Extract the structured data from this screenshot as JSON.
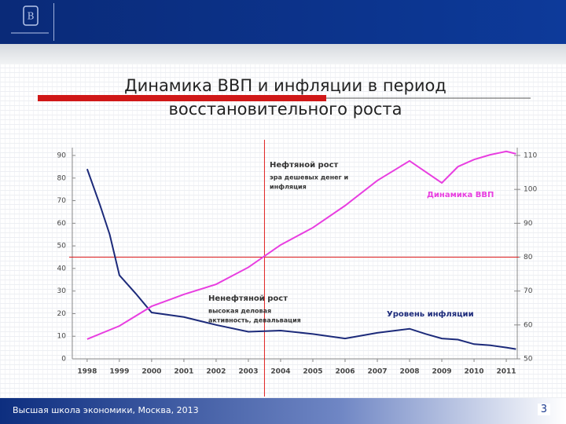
{
  "slide": {
    "title_lines": [
      "Динамика ВВП и инфляции в период",
      "восстановительного роста"
    ]
  },
  "footer": {
    "text": "Высшая школа экономики, Москва, 2013",
    "page": "3"
  },
  "chart_data": {
    "type": "line",
    "xlim": [
      1997.54,
      2011.34
    ],
    "xticks": [
      1998,
      1999,
      2000,
      2001,
      2002,
      2003,
      2004,
      2005,
      2006,
      2007,
      2008,
      2009,
      2010,
      2011
    ],
    "ylim": [
      0,
      90
    ],
    "yticks": [
      0,
      10,
      20,
      30,
      40,
      50,
      60,
      70,
      80,
      90
    ],
    "y2lim": [
      50,
      110
    ],
    "y2ticks": [
      50,
      60,
      70,
      80,
      90,
      100,
      110
    ],
    "series": [
      {
        "name": "Уровень инфляции",
        "color": "#1c2a7a",
        "x": [
          1998.0,
          1998.4,
          1998.7,
          1999.0,
          1999.5,
          2000.0,
          2001.0,
          2002.0,
          2003.0,
          2004.0,
          2005.0,
          2006.0,
          2007.0,
          2008.0,
          2008.5,
          2009.0,
          2009.5,
          2010.0,
          2010.5,
          2011.0,
          2011.3
        ],
        "values": [
          84,
          68,
          55,
          37,
          29,
          20.5,
          18.5,
          15,
          12,
          12.5,
          11,
          9,
          11.5,
          13.3,
          11,
          9,
          8.5,
          6.5,
          6,
          5,
          4.3
        ]
      },
      {
        "name": "Динамика ВВП",
        "color": "#e83ee0",
        "axis": "y2",
        "x": [
          1998.0,
          1999.0,
          2000.0,
          2001.0,
          2002.0,
          2003.0,
          2004.0,
          2005.0,
          2006.0,
          2007.0,
          2008.0,
          2009.0,
          2009.5,
          2010.0,
          2010.5,
          2011.0,
          2011.3
        ],
        "values": [
          55.8,
          59.7,
          65.5,
          69,
          72,
          77,
          83.6,
          88.7,
          95.2,
          102.6,
          108.4,
          101.9,
          106.7,
          108.8,
          110.2,
          111.2,
          110.5
        ]
      }
    ],
    "reference_lines": {
      "x": 2003.5,
      "y2": 80,
      "color": "#e02020"
    },
    "annotations": [
      {
        "lines": [
          "Нефтяной рост",
          "эра дешевых денег и",
          "инфляция"
        ]
      },
      {
        "lines": [
          "Ненефтяной рост",
          "высокая деловая",
          "активность, девальвация"
        ]
      }
    ]
  }
}
